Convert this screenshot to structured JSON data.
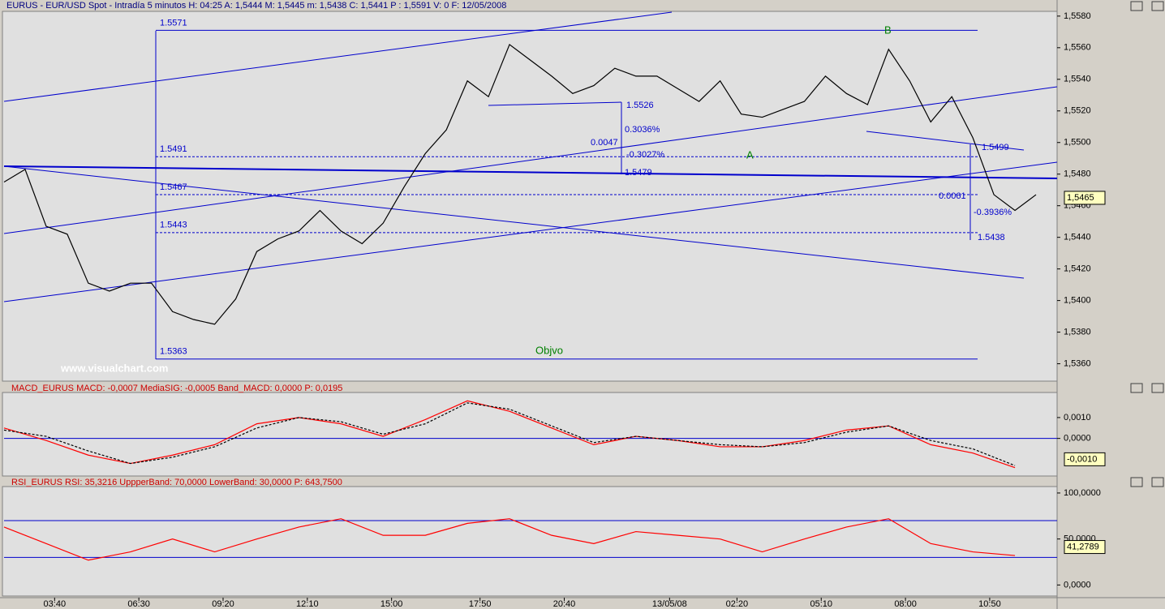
{
  "chart_data": [
    {
      "type": "line",
      "title": "EURUS - EUR/USD Spot - Intradía 5 minutos  H: 04:25  A: 1,5444  M: 1,5445  m: 1,5438  C: 1,5441  P : 1,5591  V: 0  F: 12/05/2008",
      "watermark": "www.visualchart.com",
      "x": [
        0,
        5,
        10,
        15,
        20,
        25,
        30,
        35,
        40,
        45,
        50,
        55,
        60,
        65,
        70,
        75,
        80,
        85,
        90,
        95,
        100,
        105,
        110,
        115,
        120,
        125,
        130,
        135,
        140,
        145,
        150,
        155,
        160,
        165,
        170,
        175,
        180,
        185,
        190,
        195,
        200,
        205,
        210,
        215,
        220,
        225,
        230,
        235,
        240,
        245
      ],
      "values": [
        1.5475,
        1.5483,
        1.5447,
        1.5442,
        1.5411,
        1.5406,
        1.5411,
        1.5411,
        1.5393,
        1.5388,
        1.5385,
        1.5401,
        1.5431,
        1.5439,
        1.5444,
        1.5457,
        1.5444,
        1.5436,
        1.5449,
        1.5472,
        1.5493,
        1.5508,
        1.5539,
        1.5529,
        1.5562,
        1.5552,
        1.5542,
        1.5531,
        1.5536,
        1.5547,
        1.5542,
        1.5542,
        1.5534,
        1.5526,
        1.5539,
        1.5518,
        1.5516,
        1.5521,
        1.5526,
        1.5542,
        1.5531,
        1.5524,
        1.5559,
        1.5539,
        1.5513,
        1.5529,
        1.5503,
        1.5467,
        1.5457,
        1.5467
      ],
      "color": "#000000",
      "xlim": [
        0,
        250
      ],
      "xticks": [
        {
          "value": 12,
          "label": "03:40"
        },
        {
          "value": 32,
          "label": "06:30"
        },
        {
          "value": 52,
          "label": "09:20"
        },
        {
          "value": 72,
          "label": "12:10"
        },
        {
          "value": 92,
          "label": "15:00"
        },
        {
          "value": 113,
          "label": "17:50"
        },
        {
          "value": 133,
          "label": "20:40"
        },
        {
          "value": 158,
          "label": "13/05/08"
        },
        {
          "value": 174,
          "label": "02:20"
        },
        {
          "value": 194,
          "label": "05:10"
        },
        {
          "value": 214,
          "label": "08:00"
        },
        {
          "value": 234,
          "label": "10:50"
        }
      ],
      "ylim": [
        1.5349,
        1.5583
      ],
      "yticks": [
        {
          "value": 1.536,
          "label": "1,5360"
        },
        {
          "value": 1.538,
          "label": "1,5380"
        },
        {
          "value": 1.54,
          "label": "1,5400"
        },
        {
          "value": 1.542,
          "label": "1,5420"
        },
        {
          "value": 1.544,
          "label": "1,5440"
        },
        {
          "value": 1.546,
          "label": "1,5460"
        },
        {
          "value": 1.548,
          "label": "1,5480"
        },
        {
          "value": 1.55,
          "label": "1,5500"
        },
        {
          "value": 1.552,
          "label": "1,5520"
        },
        {
          "value": 1.554,
          "label": "1,5540"
        },
        {
          "value": 1.556,
          "label": "1,5560"
        },
        {
          "value": 1.558,
          "label": "1,5580"
        }
      ],
      "levels": [
        1.5571,
        1.5491,
        1.5467,
        1.5443,
        1.5363
      ],
      "last_value": {
        "value": 1.5465,
        "label": "1,5465"
      },
      "annotations": [
        "1.5526",
        "0.3036%",
        "0.0047",
        "-0.3027%",
        "1.5479",
        "1.5499",
        "0.0061",
        "-0.3936%",
        "1.5438",
        "A",
        "B",
        "Objvo"
      ]
    },
    {
      "type": "line",
      "title": "MACD_EURUS  MACD: -0,0007  MediaSIG: -0,0005  Band_MACD: 0,0000  P: 0,0195",
      "x": [
        0,
        10,
        20,
        30,
        40,
        50,
        60,
        70,
        80,
        90,
        100,
        110,
        120,
        130,
        140,
        150,
        160,
        170,
        180,
        190,
        200,
        210,
        220,
        230,
        240
      ],
      "series": [
        {
          "color": "#ff0000",
          "values": [
            0.0005,
            -0.0001,
            -0.0008,
            -0.0012,
            -0.0008,
            -0.0003,
            0.0007,
            0.001,
            0.0007,
            0.0001,
            0.0009,
            0.0018,
            0.0013,
            0.0005,
            -0.0003,
            0.0001,
            -0.0001,
            -0.0004,
            -0.0004,
            -0.0001,
            0.0004,
            0.0006,
            -0.0003,
            -0.0007,
            -0.0014
          ]
        },
        {
          "color": "#000000",
          "values": [
            0.0004,
            0.0001,
            -0.0006,
            -0.0012,
            -0.0009,
            -0.0004,
            0.0005,
            0.001,
            0.0008,
            0.0002,
            0.0007,
            0.0017,
            0.0014,
            0.0006,
            -0.0002,
            0.0001,
            -0.0001,
            -0.0003,
            -0.0004,
            -0.0002,
            0.0003,
            0.0006,
            -0.0001,
            -0.0005,
            -0.0013
          ]
        }
      ],
      "xlim": [
        0,
        250
      ],
      "ylim": [
        -0.0018,
        0.0022
      ],
      "yticks": [
        {
          "value": 0,
          "label": "0,0000"
        },
        {
          "value": 0.001,
          "label": "0,0010"
        }
      ],
      "bands": [
        0
      ],
      "last_value": {
        "value": -0.001,
        "label": "-0,0010"
      }
    },
    {
      "type": "line",
      "title": "RSI_EURUS  RSI: 35,3216  UppperBand: 70,0000  LowerBand: 30,0000  P: 643,7500",
      "x": [
        0,
        10,
        20,
        30,
        40,
        50,
        60,
        70,
        80,
        90,
        100,
        110,
        120,
        130,
        140,
        150,
        160,
        170,
        180,
        190,
        200,
        210,
        220,
        230,
        240
      ],
      "values": [
        63,
        45,
        27,
        36,
        50,
        36,
        50,
        63,
        72,
        54,
        54,
        67,
        72,
        54,
        45,
        58,
        54,
        50,
        36,
        50,
        63,
        72,
        45,
        36,
        32
      ],
      "color": "#ff0000",
      "xlim": [
        0,
        250
      ],
      "ylim": [
        -12,
        107
      ],
      "yticks": [
        {
          "value": 0,
          "label": "0,0000"
        },
        {
          "value": 50,
          "label": "50,0000"
        },
        {
          "value": 100,
          "label": "100,0000"
        }
      ],
      "bands": [
        70,
        30
      ],
      "last_value": {
        "value": 41.2789,
        "label": "41,2789"
      }
    }
  ]
}
